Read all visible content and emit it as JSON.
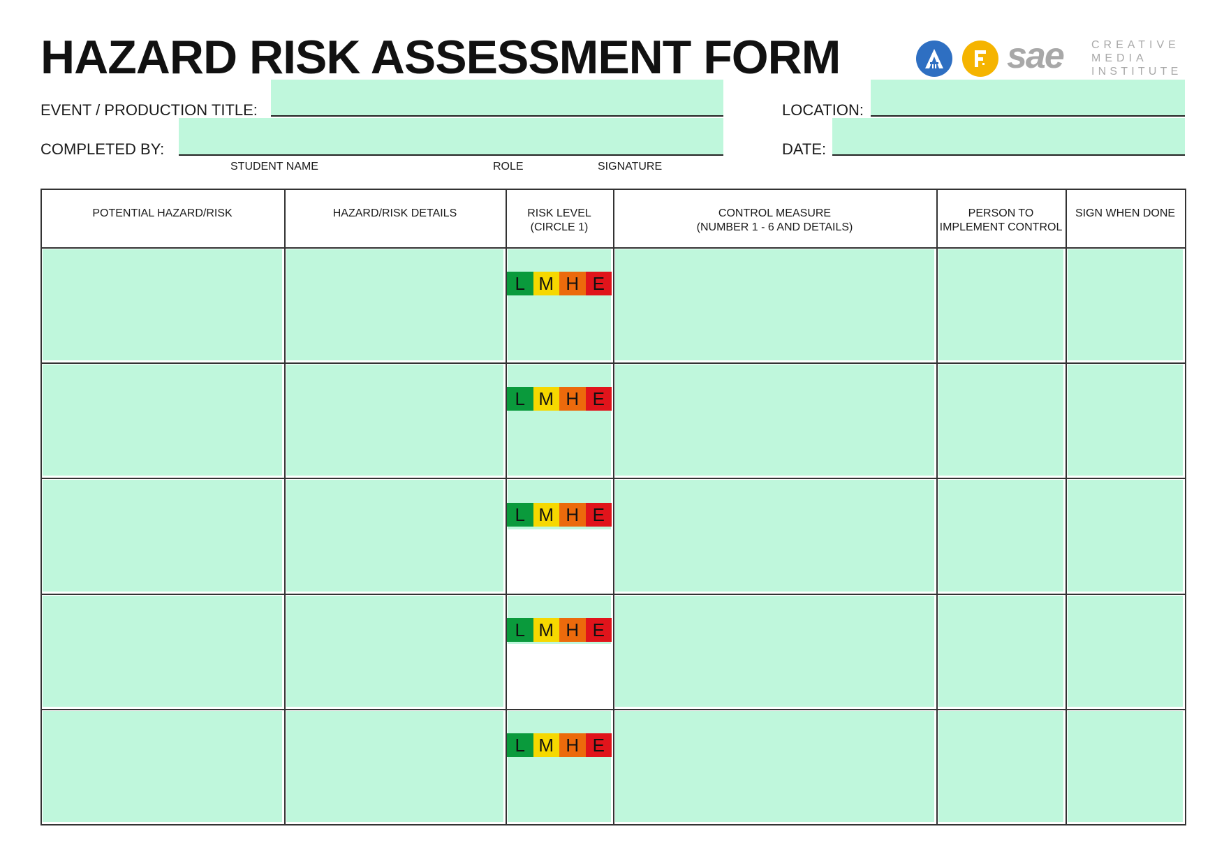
{
  "header": {
    "title": "HAZARD RISK ASSESSMENT FORM",
    "event_title_label": "EVENT / PRODUCTION  TITLE:",
    "location_label": "LOCATION:",
    "completed_by_label": "COMPLETED  BY:",
    "date_label": "DATE:",
    "student_name_label": "STUDENT NAME",
    "role_label": "ROLE",
    "signature_label": "SIGNATURE",
    "event_title_value": "",
    "location_value": "",
    "completed_by_value": "",
    "date_value": ""
  },
  "logos": {
    "logo_a_letter": "A",
    "logo_f_letter": "F",
    "sae_word": "sae",
    "sae_line1": "CREATIVE",
    "sae_line2": "MEDIA",
    "sae_line3": "INSTITUTE",
    "logo_a_color": "#2e6fc2",
    "logo_f_color": "#f5b400"
  },
  "table": {
    "columns": [
      {
        "line1": "POTENTIAL HAZARD/RISK",
        "line2": ""
      },
      {
        "line1": "HAZARD/RISK DETAILS",
        "line2": ""
      },
      {
        "line1": "RISK LEVEL",
        "line2": "(CIRCLE 1)"
      },
      {
        "line1": "CONTROL MEASURE",
        "line2": "(NUMBER 1 - 6 AND DETAILS)"
      },
      {
        "line1": "PERSON TO",
        "line2": "IMPLEMENT CONTROL"
      },
      {
        "line1": "SIGN WHEN DONE",
        "line2": ""
      }
    ],
    "risk_levels": [
      {
        "letter": "L",
        "color": "#0a9a3c"
      },
      {
        "letter": "M",
        "color": "#f6d800"
      },
      {
        "letter": "H",
        "color": "#ec6a0c"
      },
      {
        "letter": "E",
        "color": "#e0141b"
      }
    ],
    "row_count": 5
  },
  "colors": {
    "field_fill": "#bff7dc",
    "rule": "#333333"
  }
}
